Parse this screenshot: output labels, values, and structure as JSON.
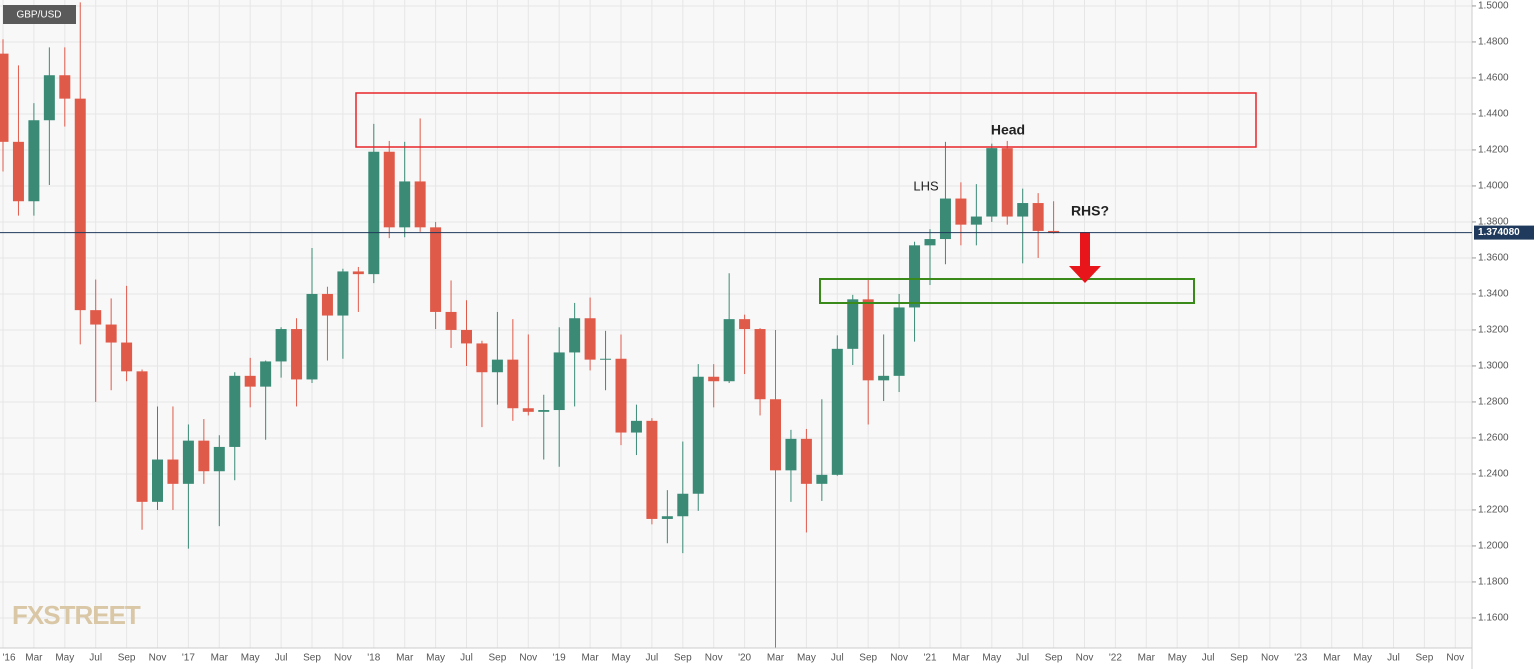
{
  "chart_data": {
    "type": "candlestick",
    "symbol": "GBP/USD",
    "watermark": "FXSTREET",
    "categories": [
      "'16",
      null,
      "Mar",
      null,
      "May",
      null,
      "Jul",
      null,
      "Sep",
      null,
      "Nov",
      null,
      "'17",
      null,
      "Mar",
      null,
      "May",
      null,
      "Jul",
      null,
      "Sep",
      null,
      "Nov",
      null,
      "'18",
      null,
      "Mar",
      null,
      "May",
      null,
      "Jul",
      null,
      "Sep",
      null,
      "Nov",
      null,
      "'19",
      null,
      "Mar",
      null,
      "May",
      null,
      "Jul",
      null,
      "Sep",
      null,
      "Nov",
      null,
      "'20",
      null,
      "Mar",
      null,
      "May",
      null,
      "Jul",
      null,
      "Sep",
      null,
      "Nov",
      null,
      "'21",
      null,
      "Mar",
      null,
      "May",
      null,
      "Jul",
      null,
      "Sep",
      null,
      "Nov",
      null,
      "'22",
      null,
      "Mar",
      null,
      "May",
      null,
      "Jul",
      null,
      "Sep",
      null,
      "Nov",
      null,
      "'23",
      null,
      "Mar",
      null,
      "May",
      null,
      "Jul",
      null,
      "Sep",
      null,
      "Nov"
    ],
    "open": [
      1.4735,
      1.4245,
      1.3915,
      1.4365,
      1.4615,
      1.4485,
      1.331,
      1.323,
      1.313,
      1.297,
      1.2245,
      1.248,
      1.2345,
      1.2585,
      1.2415,
      1.255,
      1.2945,
      1.2885,
      1.3025,
      1.3205,
      1.2925,
      1.34,
      1.328,
      1.3525,
      1.351,
      1.419,
      1.377,
      1.4025,
      1.377,
      1.33,
      1.32,
      1.3125,
      1.2965,
      1.3035,
      1.2765,
      1.2745,
      1.2755,
      1.3075,
      1.3265,
      1.3035,
      1.304,
      1.263,
      1.2695,
      1.215,
      1.2165,
      1.229,
      1.294,
      1.2915,
      1.326,
      1.3205,
      1.2815,
      1.242,
      1.2595,
      1.2345,
      1.2395,
      1.3095,
      1.337,
      1.292,
      1.2945,
      1.3325,
      1.367,
      1.3705,
      1.393,
      1.3785,
      1.383,
      1.421,
      1.383,
      1.3905,
      1.375,
      null,
      null,
      null,
      null,
      null,
      null,
      null,
      null,
      null,
      null,
      null,
      null,
      null,
      null,
      null,
      null,
      null,
      null,
      null,
      null,
      null,
      null,
      null,
      null,
      null,
      null
    ],
    "high": [
      1.4815,
      1.467,
      1.446,
      1.477,
      1.477,
      1.502,
      1.348,
      1.3375,
      1.3445,
      1.298,
      1.2775,
      1.2775,
      1.2675,
      1.2705,
      1.2615,
      1.2965,
      1.3045,
      1.303,
      1.3215,
      1.3265,
      1.3655,
      1.344,
      1.354,
      1.355,
      1.4345,
      1.425,
      1.4245,
      1.4375,
      1.38,
      1.3475,
      1.3365,
      1.314,
      1.33,
      1.326,
      1.3175,
      1.284,
      1.3215,
      1.335,
      1.338,
      1.3195,
      1.3175,
      1.2785,
      1.271,
      1.231,
      1.258,
      1.301,
      1.301,
      1.3515,
      1.3285,
      1.321,
      1.32,
      1.2645,
      1.265,
      1.2815,
      1.317,
      1.3395,
      1.348,
      1.3175,
      1.34,
      1.369,
      1.376,
      1.4245,
      1.402,
      1.401,
      1.4235,
      1.425,
      1.3985,
      1.396,
      1.3915,
      null,
      null,
      null,
      null,
      null,
      null,
      null,
      null,
      null,
      null,
      null,
      null,
      null,
      null,
      null,
      null,
      null,
      null,
      null,
      null,
      null,
      null,
      null,
      null,
      null,
      null
    ],
    "low": [
      1.408,
      1.3835,
      1.3835,
      1.4005,
      1.433,
      1.312,
      1.28,
      1.2865,
      1.2915,
      1.209,
      1.22,
      1.22,
      1.1985,
      1.2345,
      1.211,
      1.2365,
      1.277,
      1.259,
      1.2935,
      1.2775,
      1.2905,
      1.303,
      1.304,
      1.33,
      1.346,
      1.371,
      1.3715,
      1.3745,
      1.3205,
      1.31,
      1.3,
      1.266,
      1.2785,
      1.2695,
      1.2725,
      1.248,
      1.244,
      1.2775,
      1.2975,
      1.2865,
      1.256,
      1.2505,
      1.212,
      1.2015,
      1.196,
      1.2195,
      1.277,
      1.2905,
      1.2955,
      1.2725,
      1.141,
      1.2245,
      1.2075,
      1.225,
      1.239,
      1.3005,
      1.2675,
      1.2805,
      1.2855,
      1.3135,
      1.345,
      1.3565,
      1.367,
      1.367,
      1.38,
      1.3785,
      1.357,
      1.36,
      1.3735,
      null,
      null,
      null,
      null,
      null,
      null,
      null,
      null,
      null,
      null,
      null,
      null,
      null,
      null,
      null,
      null,
      null,
      null,
      null,
      null,
      null,
      null,
      null,
      null,
      null,
      null
    ],
    "close": [
      1.4245,
      1.3915,
      1.4365,
      1.4615,
      1.4485,
      1.331,
      1.323,
      1.313,
      1.297,
      1.2245,
      1.248,
      1.2345,
      1.2585,
      1.2415,
      1.255,
      1.2945,
      1.2885,
      1.3025,
      1.3205,
      1.2925,
      1.34,
      1.328,
      1.3525,
      1.351,
      1.419,
      1.377,
      1.4025,
      1.377,
      1.33,
      1.32,
      1.3125,
      1.2965,
      1.3035,
      1.2765,
      1.2745,
      1.2755,
      1.3075,
      1.3265,
      1.3035,
      1.304,
      1.263,
      1.2695,
      1.215,
      1.2165,
      1.229,
      1.294,
      1.2915,
      1.326,
      1.3205,
      1.2815,
      1.242,
      1.2595,
      1.2345,
      1.2395,
      1.3095,
      1.337,
      1.292,
      1.2945,
      1.3325,
      1.367,
      1.3705,
      1.393,
      1.3785,
      1.383,
      1.421,
      1.383,
      1.3905,
      1.375,
      1.3741,
      null,
      null,
      null,
      null,
      null,
      null,
      null,
      null,
      null,
      null,
      null,
      null,
      null,
      null,
      null,
      null,
      null,
      null,
      null,
      null,
      null,
      null,
      null,
      null,
      null,
      null
    ],
    "up_color": "#3a8a75",
    "down_color": "#e05a4a",
    "ylim": [
      1.1433,
      1.5033
    ],
    "yticks": [
      {
        "value": 1.16,
        "label": "1.1600"
      },
      {
        "value": 1.18,
        "label": "1.1800"
      },
      {
        "value": 1.2,
        "label": "1.2000"
      },
      {
        "value": 1.22,
        "label": "1.2200"
      },
      {
        "value": 1.24,
        "label": "1.2400"
      },
      {
        "value": 1.26,
        "label": "1.2600"
      },
      {
        "value": 1.28,
        "label": "1.2800"
      },
      {
        "value": 1.3,
        "label": "1.3000"
      },
      {
        "value": 1.32,
        "label": "1.3200"
      },
      {
        "value": 1.34,
        "label": "1.3400"
      },
      {
        "value": 1.36,
        "label": "1.3600"
      },
      {
        "value": 1.38,
        "label": "1.3800"
      },
      {
        "value": 1.4,
        "label": "1.4000"
      },
      {
        "value": 1.42,
        "label": "1.4200"
      },
      {
        "value": 1.44,
        "label": "1.4400"
      },
      {
        "value": 1.46,
        "label": "1.4600"
      },
      {
        "value": 1.48,
        "label": "1.4800"
      },
      {
        "value": 1.5,
        "label": "1.5000"
      }
    ],
    "last_price": {
      "value": 1.37408,
      "label": "1.374080"
    },
    "grid": true,
    "annotations": [
      "Head",
      "LHS",
      "RHS?"
    ]
  }
}
